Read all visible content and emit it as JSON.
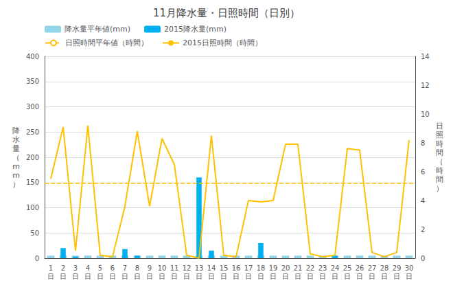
{
  "chart_data": {
    "type": "bar",
    "title": "11月降水量・日照時間（日別）",
    "categories": [
      "1\n日",
      "2\n日",
      "3\n日",
      "4\n日",
      "5\n日",
      "6\n日",
      "7\n日",
      "8\n日",
      "9\n日",
      "10\n日",
      "11\n日",
      "12\n日",
      "13\n日",
      "14\n日",
      "15\n日",
      "16\n日",
      "17\n日",
      "18\n日",
      "19\n日",
      "20\n日",
      "21\n日",
      "22\n日",
      "23\n日",
      "24\n日",
      "25\n日",
      "26\n日",
      "27\n日",
      "28\n日",
      "29\n日",
      "30\n日"
    ],
    "series": [
      {
        "name": "降水量平年値(mm)",
        "type": "bar",
        "color": "#92d5e8",
        "values": [
          5,
          5,
          5,
          5,
          5,
          5,
          5,
          5,
          5,
          5,
          5,
          5,
          5,
          5,
          5,
          5,
          5,
          5,
          5,
          5,
          5,
          5,
          5,
          5,
          5,
          5,
          5,
          5,
          5,
          5
        ]
      },
      {
        "name": "2015降水量(mm)",
        "type": "bar",
        "color": "#00b0f0",
        "values": [
          0,
          20,
          3,
          0,
          0,
          0,
          18,
          5,
          0,
          0,
          0,
          0,
          160,
          15,
          0,
          0,
          0,
          30,
          0,
          0,
          0,
          0,
          0,
          5,
          0,
          0,
          0,
          0,
          0,
          0
        ]
      },
      {
        "name": "日照時間平年値（時間）",
        "type": "hline",
        "color": "#ffc000",
        "line_style": "dashed",
        "axis": "y2",
        "value": 5.2
      },
      {
        "name": "2015日照時間（時間）",
        "type": "line",
        "color": "#ffc000",
        "line_style": "solid",
        "axis": "y2",
        "values": [
          5.5,
          9.1,
          0.5,
          9.2,
          0.2,
          0.1,
          3.6,
          8.8,
          3.6,
          8.3,
          6.5,
          0.2,
          0.0,
          8.5,
          0.2,
          0.1,
          4.0,
          3.9,
          4.0,
          7.9,
          7.9,
          0.3,
          0.1,
          0.2,
          7.6,
          7.5,
          0.4,
          0.1,
          0.4,
          8.2
        ]
      }
    ],
    "ylabel": "降\n水\n量\n（\nm\nm\n）",
    "y2label": "日\n照\n時\n間\n（\n時\n間\n）",
    "ylim": [
      0,
      400
    ],
    "yticks": [
      0,
      50,
      100,
      150,
      200,
      250,
      300,
      350,
      400
    ],
    "y2lim": [
      0,
      14
    ],
    "y2ticks": [
      0,
      2,
      4,
      6,
      8,
      10,
      12,
      14
    ],
    "grid": true,
    "legend": "upper left"
  }
}
